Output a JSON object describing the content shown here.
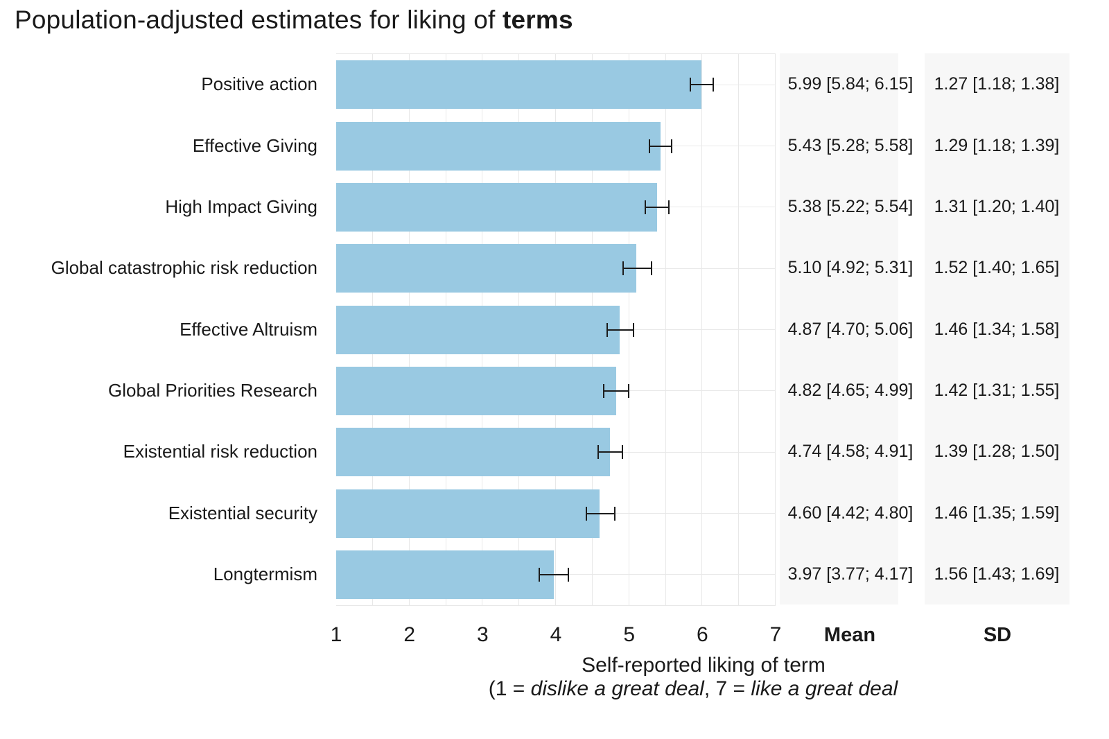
{
  "title": {
    "prefix": "Population-adjusted estimates for liking of ",
    "bold": "terms"
  },
  "chart_data": {
    "type": "bar",
    "orientation": "horizontal",
    "title": "Population-adjusted estimates for liking of terms",
    "xlabel_line1": "Self-reported liking of term",
    "xlabel_line2": "(1 = dislike a great deal, 7 = like a great deal",
    "xlabel_line2_parts": {
      "open": "(1 = ",
      "italic1": "dislike a great deal",
      "mid": ", 7 = ",
      "italic2": "like a great deal"
    },
    "xlim": [
      1,
      7
    ],
    "x_ticks": [
      "1",
      "2",
      "3",
      "4",
      "5",
      "6",
      "7"
    ],
    "grid": "on",
    "columns": {
      "mean": "Mean",
      "sd": "SD"
    },
    "bar_color": "#99c9e2",
    "errorbar_color": "#1c1c1c",
    "panel_bg": "#f7f7f7",
    "gridline_color": "#e8e8e8",
    "rows": [
      {
        "label": "Positive action",
        "mean": 5.99,
        "ci": [
          5.84,
          6.15
        ],
        "sd": 1.27,
        "sd_ci": [
          1.18,
          1.38
        ],
        "mean_text": "5.99 [5.84; 6.15]",
        "sd_text": "1.27 [1.18; 1.38]"
      },
      {
        "label": "Effective Giving",
        "mean": 5.43,
        "ci": [
          5.28,
          5.58
        ],
        "sd": 1.29,
        "sd_ci": [
          1.18,
          1.39
        ],
        "mean_text": "5.43 [5.28; 5.58]",
        "sd_text": "1.29 [1.18; 1.39]"
      },
      {
        "label": "High Impact Giving",
        "mean": 5.38,
        "ci": [
          5.22,
          5.54
        ],
        "sd": 1.31,
        "sd_ci": [
          1.2,
          1.4
        ],
        "mean_text": "5.38 [5.22; 5.54]",
        "sd_text": "1.31 [1.20; 1.40]"
      },
      {
        "label": "Global catastrophic risk reduction",
        "mean": 5.1,
        "ci": [
          4.92,
          5.31
        ],
        "sd": 1.52,
        "sd_ci": [
          1.4,
          1.65
        ],
        "mean_text": "5.10 [4.92; 5.31]",
        "sd_text": "1.52 [1.40; 1.65]"
      },
      {
        "label": "Effective Altruism",
        "mean": 4.87,
        "ci": [
          4.7,
          5.06
        ],
        "sd": 1.46,
        "sd_ci": [
          1.34,
          1.58
        ],
        "mean_text": "4.87 [4.70; 5.06]",
        "sd_text": "1.46 [1.34; 1.58]"
      },
      {
        "label": "Global Priorities Research",
        "mean": 4.82,
        "ci": [
          4.65,
          4.99
        ],
        "sd": 1.42,
        "sd_ci": [
          1.31,
          1.55
        ],
        "mean_text": "4.82 [4.65; 4.99]",
        "sd_text": "1.42 [1.31; 1.55]"
      },
      {
        "label": "Existential risk reduction",
        "mean": 4.74,
        "ci": [
          4.58,
          4.91
        ],
        "sd": 1.39,
        "sd_ci": [
          1.28,
          1.5
        ],
        "mean_text": "4.74 [4.58; 4.91]",
        "sd_text": "1.39 [1.28; 1.50]"
      },
      {
        "label": "Existential security",
        "mean": 4.6,
        "ci": [
          4.42,
          4.8
        ],
        "sd": 1.46,
        "sd_ci": [
          1.35,
          1.59
        ],
        "mean_text": "4.60 [4.42; 4.80]",
        "sd_text": "1.46 [1.35; 1.59]"
      },
      {
        "label": "Longtermism",
        "mean": 3.97,
        "ci": [
          3.77,
          4.17
        ],
        "sd": 1.56,
        "sd_ci": [
          1.43,
          1.69
        ],
        "mean_text": "3.97 [3.77; 4.17]",
        "sd_text": "1.56 [1.43; 1.69]"
      }
    ]
  }
}
